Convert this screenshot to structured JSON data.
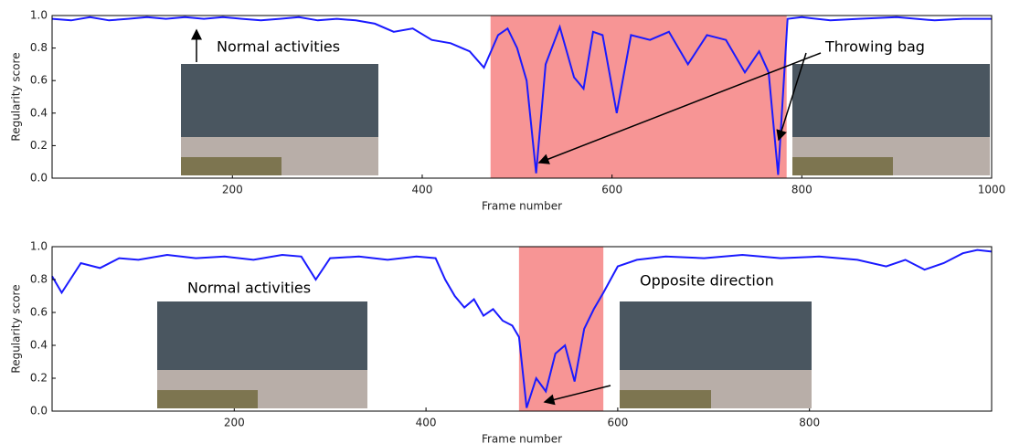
{
  "chart_data": [
    {
      "type": "line",
      "xlabel": "Frame number",
      "ylabel": "Regularity score",
      "xlim": [
        10,
        1000
      ],
      "ylim": [
        0,
        1
      ],
      "xticks": [
        200,
        400,
        600,
        800,
        1000
      ],
      "yticks": [
        {
          "value": 0,
          "label": "0.0"
        },
        0.2,
        0.4,
        0.6,
        0.8,
        {
          "value": 1,
          "label": "1.0"
        }
      ],
      "shaded": [
        [
          472,
          784
        ]
      ],
      "shade_color": "#f79595",
      "annotations": [
        "Normal activities",
        "Throwing bag"
      ],
      "series": [
        {
          "name": "Regularity score",
          "color": "#1a1aff",
          "x": [
            10,
            30,
            50,
            70,
            90,
            110,
            130,
            150,
            170,
            190,
            210,
            230,
            250,
            270,
            290,
            310,
            330,
            350,
            370,
            390,
            410,
            430,
            450,
            465,
            480,
            490,
            500,
            510,
            520,
            530,
            545,
            560,
            570,
            580,
            590,
            605,
            620,
            640,
            660,
            680,
            700,
            720,
            740,
            755,
            765,
            775,
            785,
            800,
            830,
            860,
            900,
            940,
            970,
            1000
          ],
          "values": [
            0.98,
            0.97,
            0.99,
            0.97,
            0.98,
            0.99,
            0.98,
            0.99,
            0.98,
            0.99,
            0.98,
            0.97,
            0.98,
            0.99,
            0.97,
            0.98,
            0.97,
            0.95,
            0.9,
            0.92,
            0.85,
            0.83,
            0.78,
            0.68,
            0.88,
            0.92,
            0.8,
            0.6,
            0.03,
            0.7,
            0.93,
            0.62,
            0.55,
            0.9,
            0.88,
            0.4,
            0.88,
            0.85,
            0.9,
            0.7,
            0.88,
            0.85,
            0.65,
            0.78,
            0.65,
            0.02,
            0.98,
            0.99,
            0.97,
            0.98,
            0.99,
            0.97,
            0.98,
            0.98
          ]
        }
      ]
    },
    {
      "type": "line",
      "xlabel": "Frame number",
      "ylabel": "Regularity score",
      "xlim": [
        10,
        990
      ],
      "ylim": [
        0,
        1
      ],
      "xticks": [
        200,
        400,
        600,
        800
      ],
      "yticks": [
        {
          "value": 0,
          "label": "0.0"
        },
        0.2,
        0.4,
        0.6,
        0.8,
        {
          "value": 1,
          "label": "1.0"
        }
      ],
      "shaded": [
        [
          497,
          585
        ]
      ],
      "shade_color": "#f79595",
      "annotations": [
        "Normal activities",
        "Opposite direction"
      ],
      "series": [
        {
          "name": "Regularity score",
          "color": "#1a1aff",
          "x": [
            10,
            20,
            40,
            60,
            80,
            100,
            130,
            160,
            190,
            220,
            250,
            270,
            285,
            300,
            330,
            360,
            390,
            410,
            420,
            430,
            440,
            450,
            460,
            470,
            480,
            490,
            497,
            505,
            515,
            525,
            535,
            545,
            555,
            565,
            575,
            585,
            600,
            620,
            650,
            690,
            730,
            770,
            810,
            850,
            880,
            900,
            920,
            940,
            960,
            975,
            990
          ],
          "values": [
            0.82,
            0.72,
            0.9,
            0.87,
            0.93,
            0.92,
            0.95,
            0.93,
            0.94,
            0.92,
            0.95,
            0.94,
            0.8,
            0.93,
            0.94,
            0.92,
            0.94,
            0.93,
            0.8,
            0.7,
            0.63,
            0.68,
            0.58,
            0.62,
            0.55,
            0.52,
            0.45,
            0.02,
            0.2,
            0.12,
            0.35,
            0.4,
            0.18,
            0.5,
            0.62,
            0.72,
            0.88,
            0.92,
            0.94,
            0.93,
            0.95,
            0.93,
            0.94,
            0.92,
            0.88,
            0.92,
            0.86,
            0.9,
            0.96,
            0.98,
            0.97
          ]
        }
      ]
    }
  ]
}
